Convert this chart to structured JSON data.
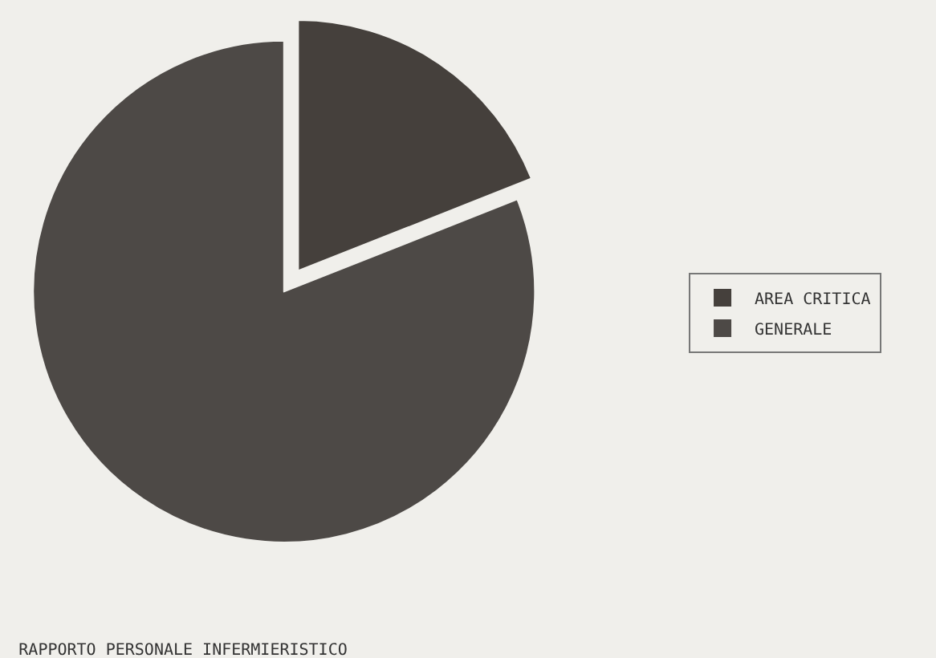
{
  "chart_data": {
    "type": "pie",
    "title": "RAPPORTO PERSONALE INFERMIERISTICO",
    "categories": [
      "AREA CRITICA",
      "GENERALE"
    ],
    "values": [
      19,
      81
    ],
    "colors": [
      "#45403c",
      "#4d4946"
    ],
    "legend": "right"
  }
}
